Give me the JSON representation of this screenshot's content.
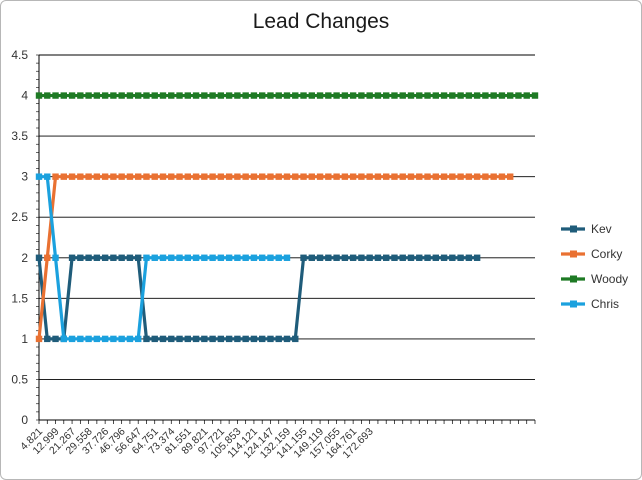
{
  "chart_data": {
    "type": "line",
    "title": "Lead Changes",
    "xlabel": "",
    "ylabel": "",
    "ylim": [
      0,
      4.5
    ],
    "yticks": [
      0,
      0.5,
      1,
      1.5,
      2,
      2.5,
      3,
      3.5,
      4,
      4.5
    ],
    "grid": true,
    "legend_position": "right",
    "x_labels": [
      "4.821",
      "12.999",
      "21.267",
      "29.558",
      "37.726",
      "46.796",
      "56.647",
      "64.751",
      "73.374",
      "81.551",
      "89.821",
      "97.721",
      "105.853",
      "114.121",
      "124.147",
      "132.159",
      "141.155",
      "149.119",
      "157.055",
      "164.761",
      "172.693"
    ],
    "n_points": 61,
    "series": [
      {
        "name": "Kev",
        "color": "#1F5C7A",
        "values": [
          2,
          1,
          1,
          1,
          2,
          2,
          2,
          2,
          2,
          2,
          2,
          2,
          2,
          1,
          1,
          1,
          1,
          1,
          1,
          1,
          1,
          1,
          1,
          1,
          1,
          1,
          1,
          1,
          1,
          1,
          1,
          1,
          2,
          2,
          2,
          2,
          2,
          2,
          2,
          2,
          2,
          2,
          2,
          2,
          2,
          2,
          2,
          2,
          2,
          2,
          2,
          2,
          2,
          2
        ]
      },
      {
        "name": "Corky",
        "color": "#E97132",
        "values": [
          1,
          2,
          3,
          3,
          3,
          3,
          3,
          3,
          3,
          3,
          3,
          3,
          3,
          3,
          3,
          3,
          3,
          3,
          3,
          3,
          3,
          3,
          3,
          3,
          3,
          3,
          3,
          3,
          3,
          3,
          3,
          3,
          3,
          3,
          3,
          3,
          3,
          3,
          3,
          3,
          3,
          3,
          3,
          3,
          3,
          3,
          3,
          3,
          3,
          3,
          3,
          3,
          3,
          3,
          3,
          3,
          3,
          3
        ]
      },
      {
        "name": "Woody",
        "color": "#1E7A24",
        "values": [
          4,
          4,
          4,
          4,
          4,
          4,
          4,
          4,
          4,
          4,
          4,
          4,
          4,
          4,
          4,
          4,
          4,
          4,
          4,
          4,
          4,
          4,
          4,
          4,
          4,
          4,
          4,
          4,
          4,
          4,
          4,
          4,
          4,
          4,
          4,
          4,
          4,
          4,
          4,
          4,
          4,
          4,
          4,
          4,
          4,
          4,
          4,
          4,
          4,
          4,
          4,
          4,
          4,
          4,
          4,
          4,
          4,
          4,
          4,
          4,
          4
        ]
      },
      {
        "name": "Chris",
        "color": "#1BA1DE",
        "values": [
          3,
          3,
          2,
          1,
          1,
          1,
          1,
          1,
          1,
          1,
          1,
          1,
          1,
          2,
          2,
          2,
          2,
          2,
          2,
          2,
          2,
          2,
          2,
          2,
          2,
          2,
          2,
          2,
          2,
          2,
          2
        ]
      }
    ]
  }
}
